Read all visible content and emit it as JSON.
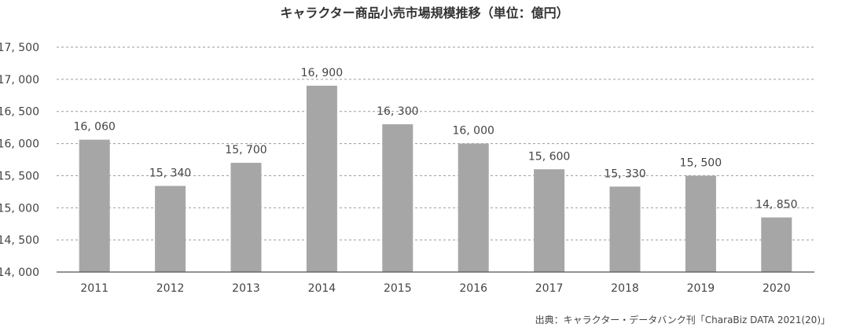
{
  "chart_data": {
    "type": "bar",
    "title": "キャラクター商品小売市場規模推移（単位：億円）",
    "categories": [
      "2011",
      "2012",
      "2013",
      "2014",
      "2015",
      "2016",
      "2017",
      "2018",
      "2019",
      "2020"
    ],
    "values": [
      16060,
      15340,
      15700,
      16900,
      16300,
      16000,
      15600,
      15330,
      15500,
      14850
    ],
    "value_labels": [
      "16, 060",
      "15, 340",
      "15, 700",
      "16, 900",
      "16, 300",
      "16, 000",
      "15, 600",
      "15, 330",
      "15, 500",
      "14, 850"
    ],
    "yticks": [
      14000,
      14500,
      15000,
      15500,
      16000,
      16500,
      17000,
      17500
    ],
    "ytick_labels": [
      "14, 000",
      "14, 500",
      "15, 000",
      "15, 500",
      "16, 000",
      "16, 500",
      "17, 000",
      "17, 500"
    ],
    "ylim": [
      14000,
      17500
    ],
    "xlabel": "",
    "ylabel": "",
    "grid": true,
    "bar_color": "#a6a6a6",
    "source": "出典：キャラクター・データバンク刊「CharaBiz DATA 2021(20)」"
  }
}
